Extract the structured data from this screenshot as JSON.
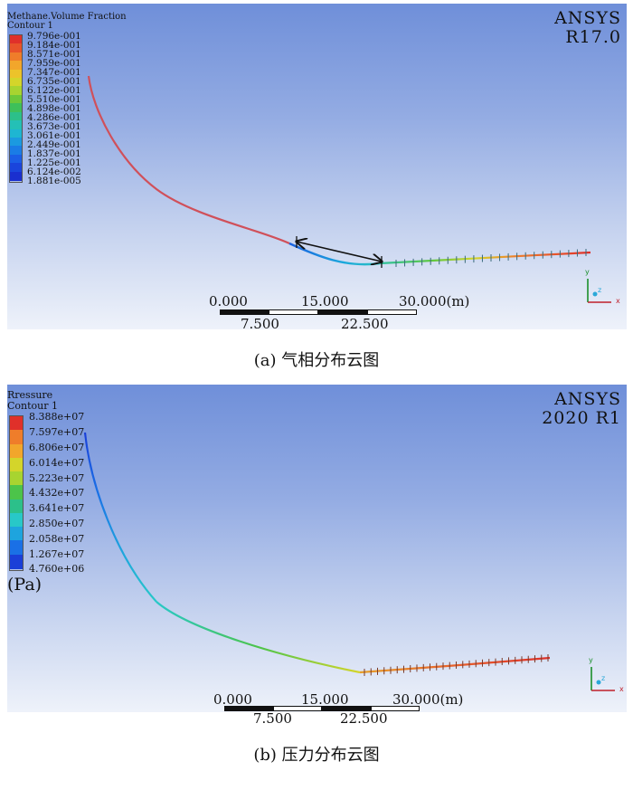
{
  "panel_a": {
    "legend_title": "Methane.Volume Fraction",
    "legend_subtitle": "Contour 1",
    "legend_values": [
      "9.796e-001",
      "9.184e-001",
      "8.571e-001",
      "7.959e-001",
      "7.347e-001",
      "6.735e-001",
      "6.122e-001",
      "5.510e-001",
      "4.898e-001",
      "4.286e-001",
      "3.673e-001",
      "3.061e-001",
      "2.449e-001",
      "1.837e-001",
      "1.225e-001",
      "6.124e-002",
      "1.881e-005"
    ],
    "legend_colors": [
      "#e0302a",
      "#e8532a",
      "#ef7d2a",
      "#f2a62b",
      "#ecc32a",
      "#d4d52a",
      "#a8d430",
      "#6cc83a",
      "#3ec05a",
      "#2cc08a",
      "#24c0b6",
      "#1eb6d2",
      "#1b9ae0",
      "#1a7ce6",
      "#1b5ee6",
      "#1a45dc",
      "#1a2fcf"
    ],
    "brand_line1": "ANSYS",
    "brand_line2": "R17.0",
    "scale_top": [
      "0.000",
      "15.000",
      "30.000(m)"
    ],
    "scale_bottom": [
      "7.500",
      "22.500"
    ],
    "caption": "(a) 气相分布云图"
  },
  "panel_b": {
    "legend_title": "Rressure",
    "legend_subtitle": "Contour 1",
    "legend_values": [
      "8.388e+07",
      "7.597e+07",
      "6.806e+07",
      "6.014e+07",
      "5.223e+07",
      "4.432e+07",
      "3.641e+07",
      "2.850e+07",
      "2.058e+07",
      "1.267e+07",
      "4.760e+06"
    ],
    "legend_colors": [
      "#e0302a",
      "#ef7d2a",
      "#f2a62b",
      "#d4d52a",
      "#a8d430",
      "#4cc44a",
      "#2cc08a",
      "#28c8c8",
      "#1ea4de",
      "#1a70e6",
      "#1a3fd8"
    ],
    "unit": "(Pa)",
    "brand_line1": "ANSYS",
    "brand_line2": "2020 R1",
    "scale_top": [
      "0.000",
      "15.000",
      "30.000(m)"
    ],
    "scale_bottom": [
      "7.500",
      "22.500"
    ],
    "caption": "(b) 压力分布云图"
  },
  "axes": {
    "x": "x",
    "y": "y",
    "z": "z"
  }
}
